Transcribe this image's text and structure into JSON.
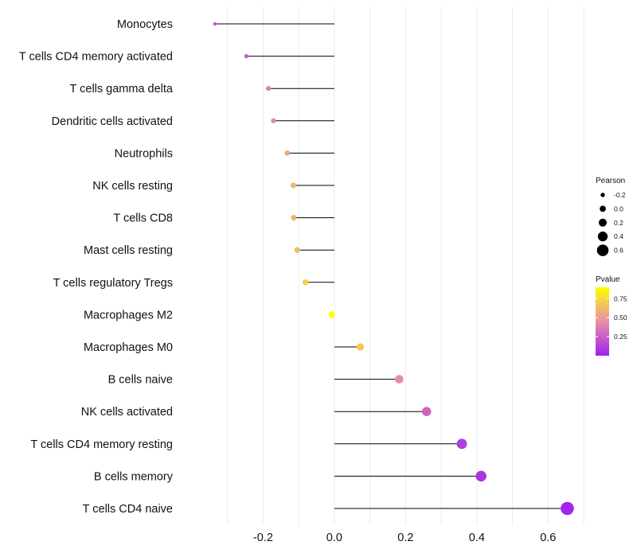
{
  "chart_data": {
    "type": "lollipop",
    "categories": [
      "Monocytes",
      "T cells CD4 memory activated",
      "T cells gamma delta",
      "Dendritic cells activated",
      "Neutrophils",
      "NK cells resting",
      "T cells CD8",
      "Mast cells resting",
      "T cells regulatory  Tregs",
      "Macrophages M2",
      "Macrophages M0",
      "B cells naive",
      "NK cells activated",
      "T cells CD4 memory resting",
      "B cells memory",
      "T cells CD4 naive"
    ],
    "values": [
      -0.335,
      -0.247,
      -0.185,
      -0.171,
      -0.132,
      -0.115,
      -0.114,
      -0.104,
      -0.081,
      -0.007,
      0.073,
      0.182,
      0.259,
      0.358,
      0.412,
      0.654
    ],
    "pvalues": [
      0.2,
      0.25,
      0.38,
      0.42,
      0.55,
      0.6,
      0.6,
      0.62,
      0.7,
      0.95,
      0.68,
      0.44,
      0.28,
      0.12,
      0.08,
      0.02
    ],
    "xlim": [
      -0.42,
      0.72
    ],
    "xticks": [
      -0.2,
      0.0,
      0.2,
      0.4,
      0.6
    ],
    "xtick_labels": [
      "-0.2",
      "0.0",
      "0.2",
      "0.4",
      "0.6"
    ],
    "grid": true,
    "legend_size": {
      "title": "Pearson",
      "values": [
        -0.2,
        0.0,
        0.2,
        0.4,
        0.6
      ],
      "labels": [
        "-0.2",
        "0.0",
        "0.2",
        "0.4",
        "0.6"
      ]
    },
    "legend_color": {
      "title": "Pvalue",
      "range": [
        0.0,
        0.9
      ],
      "ticks": [
        0.25,
        0.5,
        0.75
      ],
      "labels": [
        "0.25",
        "0.50",
        "0.75"
      ],
      "colors": [
        "#a020f0",
        "#e88fa8",
        "#ffff00"
      ]
    },
    "stem_color": "#000000",
    "grid_color": "#ebebeb"
  }
}
